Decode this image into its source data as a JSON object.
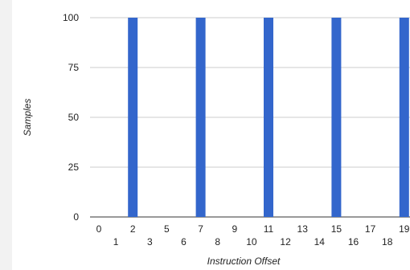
{
  "chart_data": {
    "type": "bar",
    "title": "",
    "xlabel": "Instruction Offset",
    "ylabel": "Samples",
    "ylim": [
      0,
      100
    ],
    "yticks": [
      0,
      25,
      50,
      75,
      100
    ],
    "categories": [
      "0",
      "1",
      "2",
      "3",
      "5",
      "6",
      "7",
      "8",
      "9",
      "10",
      "11",
      "12",
      "13",
      "14",
      "15",
      "16",
      "17",
      "18",
      "19"
    ],
    "values": [
      0,
      0,
      100,
      0,
      0,
      0,
      100,
      0,
      0,
      0,
      100,
      0,
      0,
      0,
      100,
      0,
      0,
      0,
      100
    ],
    "bar_color": "#3366cc",
    "grid": true,
    "legend": "none"
  }
}
